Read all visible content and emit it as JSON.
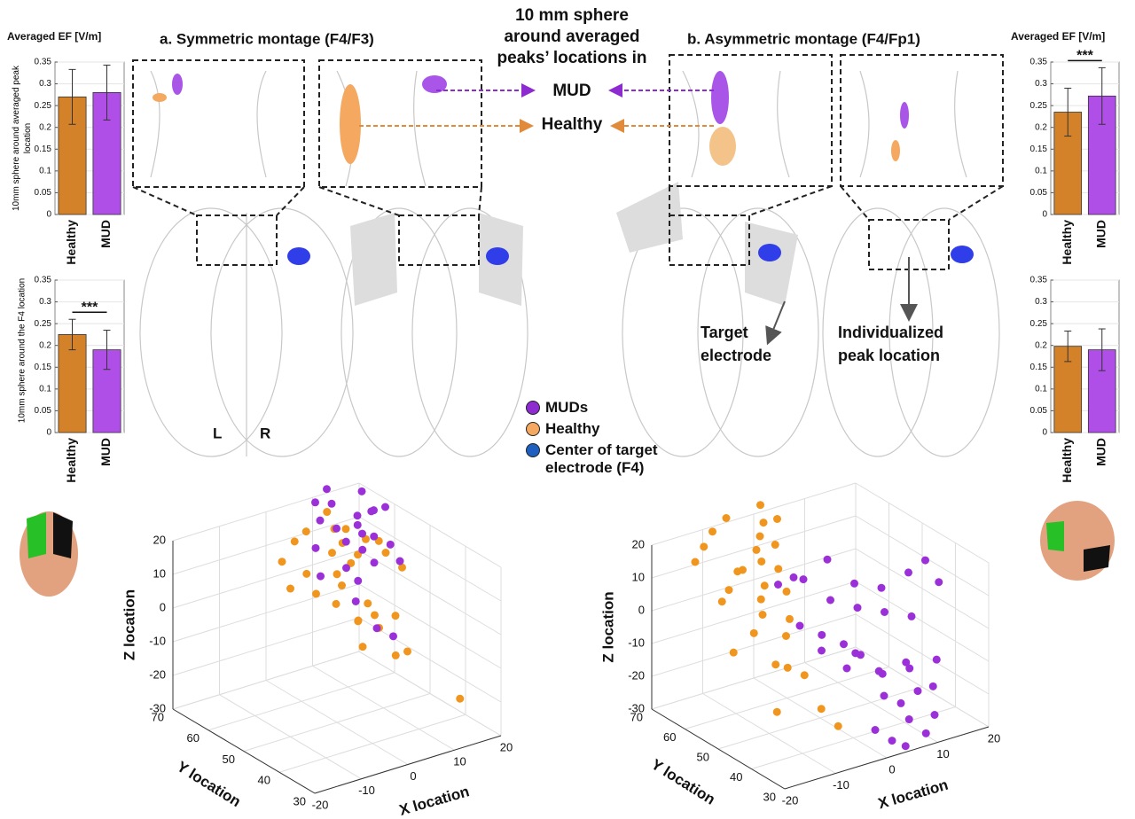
{
  "figure": {
    "panel_a": "a. Symmetric montage (F4/F3)",
    "panel_b": "b. Asymmetric montage (F4/Fp1)",
    "sphere_note": "10 mm sphere around averaged peaks’ locations in",
    "mud_arrow_label": "MUD",
    "healthy_arrow_label": "Healthy",
    "target_label": "Target electrode",
    "peak_label": "Individualized peak location",
    "left_label": "L",
    "right_label": "R",
    "legend": [
      {
        "name": "MUDs",
        "color": "#8e2bd0"
      },
      {
        "name": "Healthy",
        "color": "#f4a860"
      },
      {
        "name": "Center of target electrode (F4)",
        "color": "#1f5fbf"
      }
    ]
  },
  "chart_data": [
    {
      "type": "bar",
      "title": "Averaged EF [V/m]",
      "ylabel": "10mm sphere around averaged peak location",
      "categories": [
        "Healthy",
        "MUD"
      ],
      "values": [
        0.27,
        0.28
      ],
      "errors": [
        0.063,
        0.063
      ],
      "colors": [
        "#d4822a",
        "#b04fe8"
      ],
      "ylim": [
        0,
        0.35
      ],
      "yticks": [
        0,
        0.05,
        0.1,
        0.15,
        0.2,
        0.25,
        0.3,
        0.35
      ],
      "grid": true
    },
    {
      "type": "bar",
      "ylabel": "10mm sphere around the F4 location",
      "categories": [
        "Healthy",
        "MUD"
      ],
      "values": [
        0.225,
        0.19
      ],
      "errors": [
        0.035,
        0.045
      ],
      "colors": [
        "#d4822a",
        "#b04fe8"
      ],
      "ylim": [
        0,
        0.35
      ],
      "yticks": [
        0,
        0.05,
        0.1,
        0.15,
        0.2,
        0.25,
        0.3,
        0.35
      ],
      "grid": true,
      "annotation": "***"
    },
    {
      "type": "bar",
      "title": "Averaged EF [V/m]",
      "categories": [
        "Healthy",
        "MUD"
      ],
      "values": [
        0.235,
        0.272
      ],
      "errors": [
        0.055,
        0.065
      ],
      "colors": [
        "#d4822a",
        "#b04fe8"
      ],
      "ylim": [
        0,
        0.35
      ],
      "yticks": [
        0,
        0.05,
        0.1,
        0.15,
        0.2,
        0.25,
        0.3,
        0.35
      ],
      "grid": true,
      "annotation": "***"
    },
    {
      "type": "bar",
      "categories": [
        "Healthy",
        "MUD"
      ],
      "values": [
        0.198,
        0.19
      ],
      "errors": [
        0.035,
        0.048
      ],
      "colors": [
        "#d4822a",
        "#b04fe8"
      ],
      "ylim": [
        0,
        0.35
      ],
      "yticks": [
        0,
        0.05,
        0.1,
        0.15,
        0.2,
        0.25,
        0.3,
        0.35
      ],
      "grid": true
    },
    {
      "type": "scatter3d",
      "xlabel": "X location",
      "ylabel": "Y location",
      "zlabel": "Z location",
      "xlim": [
        -20,
        20
      ],
      "ylim": [
        30,
        70
      ],
      "zlim": [
        -30,
        20
      ],
      "xticks": [
        -20,
        -10,
        0,
        10,
        20
      ],
      "yticks": [
        30,
        40,
        50,
        60,
        70
      ],
      "zticks": [
        -30,
        -20,
        -10,
        0,
        10,
        20
      ],
      "grid": true,
      "series": [
        {
          "color": "#f0961e",
          "x": [
            -8,
            -5,
            -3,
            0,
            2,
            4,
            6,
            8,
            -6,
            -2,
            1,
            3,
            5,
            7,
            9,
            -4,
            0,
            3,
            6,
            10,
            12,
            -10,
            2,
            5,
            8,
            14,
            4,
            6,
            -1,
            15
          ],
          "y": [
            55,
            52,
            58,
            50,
            54,
            56,
            52,
            58,
            48,
            46,
            60,
            50,
            55,
            62,
            50,
            45,
            44,
            48,
            46,
            55,
            52,
            50,
            42,
            40,
            44,
            50,
            48,
            38,
            40,
            35
          ],
          "z": [
            18,
            15,
            20,
            14,
            17,
            22,
            16,
            19,
            12,
            14,
            20,
            16,
            18,
            22,
            20,
            10,
            4,
            0,
            -2,
            17,
            14,
            14,
            6,
            -6,
            2,
            10,
            -8,
            -4,
            12,
            -20
          ]
        },
        {
          "color": "#9b30d9",
          "x": [
            4,
            6,
            8,
            10,
            12,
            14,
            16,
            5,
            7,
            9,
            11,
            13,
            15,
            2,
            0,
            3,
            18,
            10,
            6,
            8,
            12,
            -2,
            1,
            4,
            6
          ],
          "y": [
            60,
            58,
            62,
            56,
            60,
            58,
            64,
            54,
            52,
            56,
            54,
            52,
            60,
            50,
            56,
            48,
            60,
            66,
            64,
            50,
            48,
            52,
            46,
            44,
            42
          ],
          "z": [
            22,
            20,
            24,
            18,
            20,
            22,
            23,
            19,
            17,
            21,
            18,
            16,
            20,
            15,
            18,
            12,
            20,
            25,
            24,
            14,
            14,
            13,
            8,
            0,
            -2
          ]
        }
      ]
    },
    {
      "type": "scatter3d",
      "xlabel": "X location",
      "ylabel": "Y location",
      "zlabel": "Z location",
      "xlim": [
        -20,
        20
      ],
      "ylim": [
        30,
        70
      ],
      "zlim": [
        -30,
        20
      ],
      "xticks": [
        -20,
        -10,
        0,
        10,
        20
      ],
      "yticks": [
        30,
        40,
        50,
        60,
        70
      ],
      "zticks": [
        -30,
        -20,
        -10,
        0,
        10,
        20
      ],
      "grid": true,
      "series": [
        {
          "color": "#f0961e",
          "x": [
            -18,
            -15,
            -12,
            -10,
            -8,
            -6,
            -4,
            -2,
            0,
            -16,
            -14,
            -11,
            -9,
            -7,
            -5,
            -3,
            -1,
            2,
            -13,
            -10,
            -8,
            -6,
            -4,
            -12,
            -9,
            -15,
            -7,
            -5,
            -3,
            -17
          ],
          "y": [
            60,
            62,
            64,
            58,
            66,
            60,
            62,
            64,
            68,
            55,
            56,
            58,
            54,
            56,
            60,
            58,
            62,
            66,
            50,
            52,
            48,
            50,
            54,
            45,
            46,
            40,
            44,
            42,
            40,
            50
          ],
          "z": [
            20,
            22,
            24,
            15,
            25,
            18,
            20,
            22,
            24,
            10,
            12,
            15,
            8,
            10,
            14,
            12,
            16,
            20,
            2,
            5,
            0,
            3,
            8,
            -5,
            -8,
            -15,
            -10,
            -20,
            -25,
            -2
          ]
        },
        {
          "color": "#9b30d9",
          "x": [
            -5,
            -2,
            0,
            2,
            4,
            6,
            8,
            10,
            12,
            14,
            16,
            18,
            -3,
            0,
            3,
            5,
            7,
            9,
            11,
            13,
            15,
            -4,
            -1,
            2,
            4,
            6,
            8,
            10,
            12,
            1,
            3,
            5,
            7,
            9,
            20
          ],
          "y": [
            55,
            52,
            58,
            50,
            54,
            48,
            52,
            46,
            50,
            44,
            48,
            46,
            45,
            42,
            44,
            40,
            42,
            38,
            40,
            36,
            38,
            50,
            48,
            46,
            44,
            40,
            38,
            36,
            34,
            35,
            33,
            32,
            34,
            32,
            45
          ],
          "z": [
            10,
            12,
            8,
            5,
            14,
            2,
            6,
            0,
            4,
            -2,
            8,
            12,
            -5,
            -10,
            -8,
            -12,
            -15,
            -10,
            -14,
            -18,
            -12,
            0,
            -3,
            -6,
            -9,
            -20,
            -22,
            -18,
            -25,
            -25,
            -28,
            -30,
            -24,
            -28,
            5
          ]
        }
      ]
    }
  ]
}
